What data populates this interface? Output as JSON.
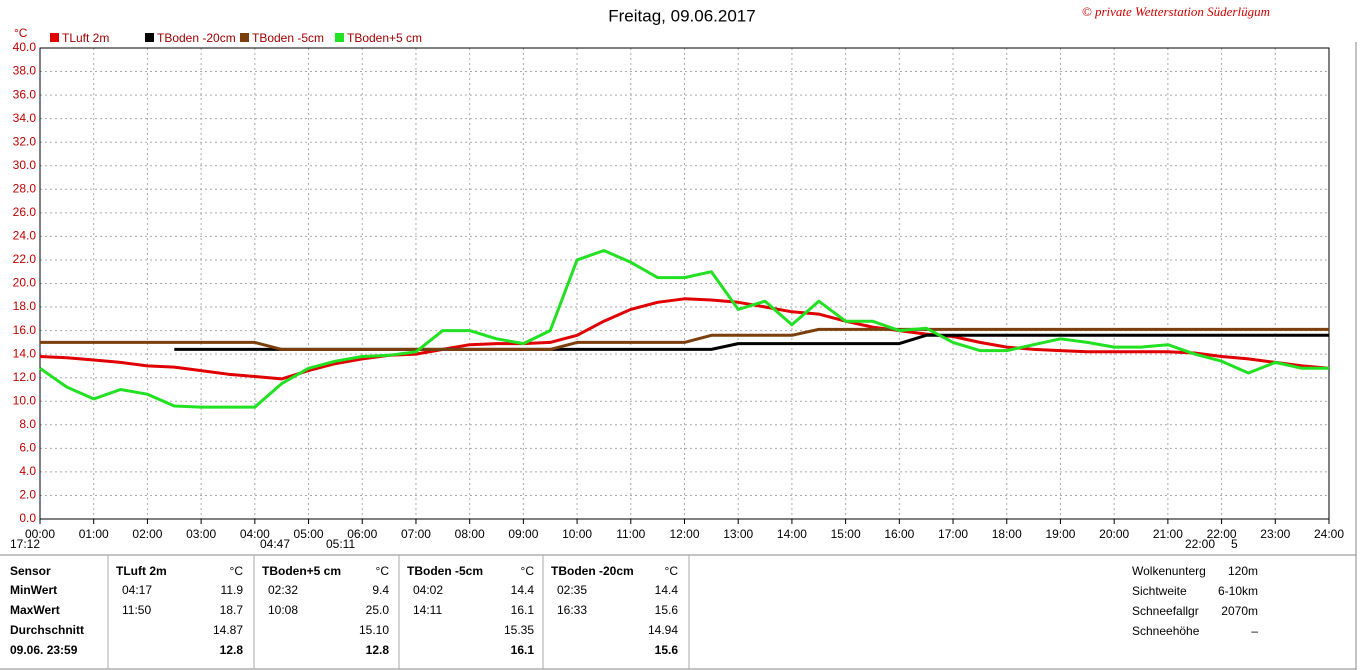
{
  "chart_data": {
    "type": "line",
    "title": "Freitag, 09.06.2017",
    "credit": "© private Wetterstation Süderlügum",
    "y_label": "°C",
    "x": [
      0,
      0.5,
      1,
      1.5,
      2,
      2.5,
      3,
      3.5,
      4,
      4.5,
      5,
      5.5,
      6,
      6.5,
      7,
      7.5,
      8,
      8.5,
      9,
      9.5,
      10,
      10.5,
      11,
      11.5,
      12,
      12.5,
      13,
      13.5,
      14,
      14.5,
      15,
      15.5,
      16,
      16.5,
      17,
      17.5,
      18,
      18.5,
      19,
      19.5,
      20,
      20.5,
      21,
      21.5,
      22,
      22.5,
      23,
      23.5,
      24
    ],
    "series": [
      {
        "name": "TLuft 2m",
        "color": "#e00000",
        "values": [
          13.8,
          13.7,
          13.5,
          13.3,
          13.0,
          12.9,
          12.6,
          12.3,
          12.1,
          11.9,
          12.6,
          13.2,
          13.6,
          13.9,
          14.0,
          14.4,
          14.8,
          14.9,
          14.9,
          15.0,
          15.6,
          16.8,
          17.8,
          18.4,
          18.7,
          18.6,
          18.4,
          18.0,
          17.6,
          17.4,
          16.8,
          16.3,
          16.0,
          15.7,
          15.5,
          15.0,
          14.6,
          14.4,
          14.3,
          14.2,
          14.2,
          14.2,
          14.2,
          14.1,
          13.8,
          13.6,
          13.3,
          13.0,
          12.8
        ]
      },
      {
        "name": "TBoden -20cm",
        "color": "#000000",
        "values": [
          null,
          null,
          null,
          null,
          null,
          14.4,
          14.4,
          14.4,
          14.4,
          14.4,
          14.4,
          14.4,
          14.4,
          14.4,
          14.4,
          14.4,
          14.4,
          14.4,
          14.4,
          14.4,
          14.4,
          14.4,
          14.4,
          14.4,
          14.4,
          14.4,
          14.9,
          14.9,
          14.9,
          14.9,
          14.9,
          14.9,
          14.9,
          15.6,
          15.6,
          15.6,
          15.6,
          15.6,
          15.6,
          15.6,
          15.6,
          15.6,
          15.6,
          15.6,
          15.6,
          15.6,
          15.6,
          15.6,
          15.6
        ]
      },
      {
        "name": "TBoden -5cm",
        "color": "#7a3f0c",
        "values": [
          15.0,
          15.0,
          15.0,
          15.0,
          15.0,
          15.0,
          15.0,
          15.0,
          15.0,
          14.4,
          14.4,
          14.4,
          14.4,
          14.4,
          14.4,
          14.4,
          14.4,
          14.4,
          14.4,
          14.4,
          15.0,
          15.0,
          15.0,
          15.0,
          15.0,
          15.6,
          15.6,
          15.6,
          15.6,
          16.1,
          16.1,
          16.1,
          16.1,
          16.1,
          16.1,
          16.1,
          16.1,
          16.1,
          16.1,
          16.1,
          16.1,
          16.1,
          16.1,
          16.1,
          16.1,
          16.1,
          16.1,
          16.1,
          16.1
        ]
      },
      {
        "name": "TBoden+5 cm",
        "color": "#22e022",
        "values": [
          12.8,
          11.2,
          10.2,
          11.0,
          10.6,
          9.6,
          9.5,
          9.5,
          9.5,
          11.5,
          12.8,
          13.4,
          13.8,
          13.9,
          14.2,
          16.0,
          16.0,
          15.3,
          14.9,
          16.0,
          22.0,
          22.8,
          21.8,
          20.5,
          20.5,
          21.0,
          17.8,
          18.5,
          16.5,
          18.5,
          16.8,
          16.8,
          16.0,
          16.2,
          15.0,
          14.3,
          14.3,
          14.8,
          15.3,
          15.0,
          14.6,
          14.6,
          14.8,
          14.0,
          13.4,
          12.4,
          13.3,
          12.8,
          12.8
        ]
      }
    ],
    "xlim": [
      0,
      24
    ],
    "xticks": [
      {
        "value": 0,
        "label": "00:00"
      },
      {
        "value": 1,
        "label": "01:00"
      },
      {
        "value": 2,
        "label": "02:00"
      },
      {
        "value": 3,
        "label": "03:00"
      },
      {
        "value": 4,
        "label": "04:00"
      },
      {
        "value": 5,
        "label": "05:00"
      },
      {
        "value": 6,
        "label": "06:00"
      },
      {
        "value": 7,
        "label": "07:00"
      },
      {
        "value": 8,
        "label": "08:00"
      },
      {
        "value": 9,
        "label": "09:00"
      },
      {
        "value": 10,
        "label": "10:00"
      },
      {
        "value": 11,
        "label": "11:00"
      },
      {
        "value": 12,
        "label": "12:00"
      },
      {
        "value": 13,
        "label": "13:00"
      },
      {
        "value": 14,
        "label": "14:00"
      },
      {
        "value": 15,
        "label": "15:00"
      },
      {
        "value": 16,
        "label": "16:00"
      },
      {
        "value": 17,
        "label": "17:00"
      },
      {
        "value": 18,
        "label": "18:00"
      },
      {
        "value": 19,
        "label": "19:00"
      },
      {
        "value": 20,
        "label": "20:00"
      },
      {
        "value": 21,
        "label": "21:00"
      },
      {
        "value": 22,
        "label": "22:00"
      },
      {
        "value": 23,
        "label": "23:00"
      },
      {
        "value": 24,
        "label": "24:00"
      }
    ],
    "ylim": [
      0,
      40
    ],
    "yticks": [
      {
        "value": 0,
        "label": "0.0"
      },
      {
        "value": 2,
        "label": "2.0"
      },
      {
        "value": 4,
        "label": "4.0"
      },
      {
        "value": 6,
        "label": "6.0"
      },
      {
        "value": 8,
        "label": "8.0"
      },
      {
        "value": 10,
        "label": "10.0"
      },
      {
        "value": 12,
        "label": "12.0"
      },
      {
        "value": 14,
        "label": "14.0"
      },
      {
        "value": 16,
        "label": "16.0"
      },
      {
        "value": 18,
        "label": "18.0"
      },
      {
        "value": 20,
        "label": "20.0"
      },
      {
        "value": 22,
        "label": "22.0"
      },
      {
        "value": 24,
        "label": "24.0"
      },
      {
        "value": 26,
        "label": "26.0"
      },
      {
        "value": 28,
        "label": "28.0"
      },
      {
        "value": 30,
        "label": "30.0"
      },
      {
        "value": 32,
        "label": "32.0"
      },
      {
        "value": 34,
        "label": "34.0"
      },
      {
        "value": 36,
        "label": "36.0"
      },
      {
        "value": 38,
        "label": "38.0"
      },
      {
        "value": 40,
        "label": "40.0"
      }
    ],
    "grid": true,
    "annotations": [
      "17:12",
      "04:47",
      "05:11",
      "22:00",
      "5"
    ]
  },
  "stats_table": {
    "row_labels": [
      "Sensor",
      "MinWert",
      "MaxWert",
      "Durchschnitt",
      "09.06. 23:59"
    ],
    "sensors": [
      {
        "name": "TLuft 2m",
        "unit": "°C",
        "min_time": "04:17",
        "min": "11.9",
        "max_time": "11:50",
        "max": "18.7",
        "avg": "14.87",
        "current": "12.8"
      },
      {
        "name": "TBoden+5 cm",
        "unit": "°C",
        "min_time": "02:32",
        "min": "9.4",
        "max_time": "10:08",
        "max": "25.0",
        "avg": "15.10",
        "current": "12.8"
      },
      {
        "name": "TBoden -5cm",
        "unit": "°C",
        "min_time": "04:02",
        "min": "14.4",
        "max_time": "14:11",
        "max": "16.1",
        "avg": "15.35",
        "current": "16.1"
      },
      {
        "name": "TBoden -20cm",
        "unit": "°C",
        "min_time": "02:35",
        "min": "14.4",
        "max_time": "16:33",
        "max": "15.6",
        "avg": "14.94",
        "current": "15.6"
      }
    ]
  },
  "info": {
    "rows": [
      [
        "Wolkenunterg",
        "120m"
      ],
      [
        "Sichtweite",
        "6-10km"
      ],
      [
        "Schneefallgr",
        "2070m"
      ],
      [
        "Schneehöhe",
        "–"
      ]
    ]
  }
}
